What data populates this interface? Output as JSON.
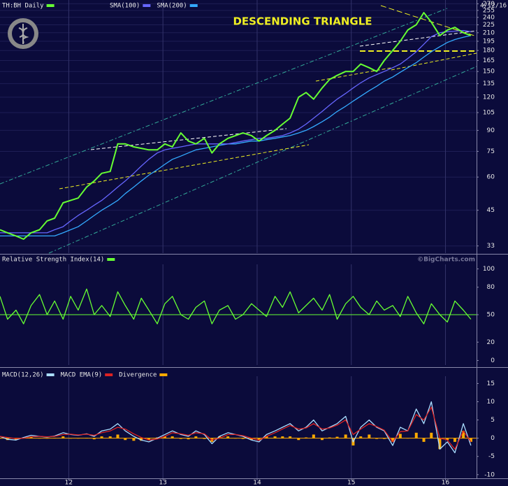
{
  "chart_data": [
    {
      "type": "line",
      "log_scale": true,
      "grid": true,
      "annotation": "DESCENDING TRIANGLE",
      "annotation_color": "#eeee22",
      "date_label": "4/12/16",
      "xlim": [
        2011.27,
        2016.33
      ],
      "ylim": [
        31,
        279
      ],
      "yticks": [
        270,
        255,
        240,
        225,
        210,
        195,
        180,
        165,
        150,
        135,
        120,
        105,
        90,
        75,
        60,
        45,
        33
      ],
      "x": [
        2011.27,
        2011.35,
        2011.44,
        2011.52,
        2011.6,
        2011.69,
        2011.77,
        2011.85,
        2011.94,
        2012.02,
        2012.1,
        2012.19,
        2012.27,
        2012.35,
        2012.44,
        2012.52,
        2012.6,
        2012.69,
        2012.77,
        2012.85,
        2012.94,
        2013.02,
        2013.1,
        2013.19,
        2013.27,
        2013.35,
        2013.44,
        2013.52,
        2013.6,
        2013.69,
        2013.77,
        2013.85,
        2013.94,
        2014.02,
        2014.1,
        2014.19,
        2014.27,
        2014.35,
        2014.44,
        2014.52,
        2014.6,
        2014.69,
        2014.77,
        2014.85,
        2014.94,
        2015.02,
        2015.1,
        2015.19,
        2015.27,
        2015.35,
        2015.44,
        2015.52,
        2015.6,
        2015.69,
        2015.77,
        2015.85,
        2015.94,
        2016.02,
        2016.1,
        2016.19,
        2016.27
      ],
      "series": [
        {
          "name": "TH:BH Daily",
          "color": "#66ff33",
          "values": [
            38,
            37,
            36,
            35,
            37,
            38,
            41,
            42,
            48,
            49,
            50,
            55,
            58,
            62,
            63,
            80,
            80,
            78,
            77,
            76,
            76,
            80,
            78,
            88,
            82,
            80,
            84,
            74,
            80,
            84,
            86,
            88,
            86,
            82,
            86,
            90,
            95,
            100,
            120,
            125,
            118,
            130,
            140,
            145,
            150,
            150,
            160,
            155,
            150,
            165,
            180,
            195,
            215,
            225,
            250,
            230,
            205,
            215,
            220,
            210,
            205
          ]
        },
        {
          "name": "SMA(100)",
          "color": "#6666ff",
          "values": [
            37,
            37,
            37,
            37,
            37,
            37,
            37,
            38,
            39,
            41,
            43,
            45,
            47,
            49,
            52,
            55,
            58,
            62,
            66,
            70,
            74,
            76,
            77,
            78,
            79,
            80,
            80,
            80,
            80,
            80,
            81,
            82,
            83,
            84,
            84,
            85,
            86,
            88,
            91,
            95,
            100,
            106,
            112,
            118,
            124,
            130,
            136,
            142,
            146,
            150,
            155,
            160,
            168,
            178,
            190,
            203,
            210,
            212,
            213,
            214,
            212
          ]
        },
        {
          "name": "SMA(200)",
          "color": "#33aaff",
          "values": [
            36,
            36,
            36,
            36,
            36,
            36,
            36,
            36,
            37,
            38,
            39,
            41,
            43,
            45,
            47,
            49,
            52,
            55,
            58,
            61,
            64,
            67,
            70,
            72,
            74,
            76,
            77,
            78,
            79,
            80,
            80,
            81,
            82,
            82,
            83,
            84,
            85,
            86,
            88,
            90,
            93,
            97,
            101,
            106,
            111,
            116,
            121,
            127,
            132,
            138,
            143,
            149,
            155,
            162,
            170,
            178,
            186,
            193,
            198,
            202,
            205
          ]
        }
      ]
    },
    {
      "type": "line",
      "source": "©BigCharts.com",
      "reference_line": 50,
      "xlim": [
        2011.27,
        2016.33
      ],
      "ylim": [
        -5,
        105
      ],
      "yticks": [
        100,
        80,
        50,
        20,
        0
      ],
      "x": [
        2011.27,
        2011.35,
        2011.44,
        2011.52,
        2011.6,
        2011.69,
        2011.77,
        2011.85,
        2011.94,
        2012.02,
        2012.1,
        2012.19,
        2012.27,
        2012.35,
        2012.44,
        2012.52,
        2012.6,
        2012.69,
        2012.77,
        2012.85,
        2012.94,
        2013.02,
        2013.1,
        2013.19,
        2013.27,
        2013.35,
        2013.44,
        2013.52,
        2013.6,
        2013.69,
        2013.77,
        2013.85,
        2013.94,
        2014.02,
        2014.1,
        2014.19,
        2014.27,
        2014.35,
        2014.44,
        2014.52,
        2014.6,
        2014.69,
        2014.77,
        2014.85,
        2014.94,
        2015.02,
        2015.1,
        2015.19,
        2015.27,
        2015.35,
        2015.44,
        2015.52,
        2015.6,
        2015.69,
        2015.77,
        2015.85,
        2015.94,
        2016.02,
        2016.1,
        2016.19,
        2016.27
      ],
      "series": [
        {
          "name": "Relative Strength Index(14)",
          "color": "#66ff33",
          "values": [
            70,
            45,
            55,
            40,
            60,
            72,
            50,
            65,
            45,
            70,
            55,
            78,
            50,
            60,
            48,
            75,
            60,
            45,
            68,
            55,
            40,
            62,
            70,
            50,
            45,
            58,
            65,
            40,
            55,
            60,
            45,
            50,
            62,
            55,
            48,
            70,
            58,
            75,
            52,
            60,
            68,
            55,
            72,
            45,
            62,
            70,
            58,
            50,
            65,
            55,
            60,
            48,
            70,
            52,
            40,
            62,
            50,
            42,
            65,
            55,
            45
          ]
        }
      ]
    },
    {
      "type": "line",
      "reference_line": 0,
      "xlim": [
        2011.27,
        2016.33
      ],
      "ylim": [
        -11,
        17
      ],
      "yticks": [
        15,
        10,
        5,
        0,
        -5,
        -10
      ],
      "xticks": [
        {
          "value": 2012,
          "label": "12"
        },
        {
          "value": 2013,
          "label": "13"
        },
        {
          "value": 2014,
          "label": "14"
        },
        {
          "value": 2015,
          "label": "15"
        },
        {
          "value": 2016,
          "label": "16"
        }
      ],
      "x": [
        2011.27,
        2011.35,
        2011.44,
        2011.52,
        2011.6,
        2011.69,
        2011.77,
        2011.85,
        2011.94,
        2012.02,
        2012.1,
        2012.19,
        2012.27,
        2012.35,
        2012.44,
        2012.52,
        2012.6,
        2012.69,
        2012.77,
        2012.85,
        2012.94,
        2013.02,
        2013.1,
        2013.19,
        2013.27,
        2013.35,
        2013.44,
        2013.52,
        2013.6,
        2013.69,
        2013.77,
        2013.85,
        2013.94,
        2014.02,
        2014.1,
        2014.19,
        2014.27,
        2014.35,
        2014.44,
        2014.52,
        2014.6,
        2014.69,
        2014.77,
        2014.85,
        2014.94,
        2015.02,
        2015.1,
        2015.19,
        2015.27,
        2015.35,
        2015.44,
        2015.52,
        2015.6,
        2015.69,
        2015.77,
        2015.85,
        2015.94,
        2016.02,
        2016.1,
        2016.19,
        2016.27
      ],
      "series": [
        {
          "name": "MACD(12,26)",
          "color": "#aaddff",
          "values": [
            0.5,
            -0.3,
            -0.5,
            0.2,
            0.8,
            0.5,
            0.3,
            0.6,
            1.5,
            1,
            0.8,
            1.2,
            0.5,
            2,
            2.5,
            4,
            2,
            0.5,
            -0.5,
            -1,
            0,
            1,
            2,
            1,
            0.5,
            2,
            1,
            -1.5,
            0.5,
            1.5,
            1,
            0.5,
            -0.5,
            -1,
            1,
            2,
            3,
            4,
            2,
            3,
            5,
            2,
            3,
            4,
            6,
            -1,
            3,
            5,
            3,
            2,
            -2,
            3,
            2,
            8,
            4,
            10,
            -3,
            -1,
            -4,
            4,
            -2
          ]
        },
        {
          "name": "MACD EMA(9)",
          "color": "#dd2222",
          "values": [
            0.5,
            0.2,
            -0.1,
            0,
            0.4,
            0.5,
            0.4,
            0.5,
            1,
            1.1,
            0.9,
            1.1,
            0.8,
            1.5,
            2,
            3,
            2.5,
            1.2,
            0.2,
            -0.5,
            -0.2,
            0.5,
            1.5,
            1.2,
            0.8,
            1.5,
            1.2,
            -0.5,
            0,
            1,
            1,
            0.7,
            0,
            -0.6,
            0.5,
            1.5,
            2.5,
            3.5,
            2.5,
            2.8,
            4,
            2.5,
            2.8,
            3.6,
            5,
            1,
            2.5,
            4,
            3.2,
            2.2,
            -1,
            1.8,
            2,
            6.5,
            5,
            8.5,
            0,
            -0.5,
            -3,
            2,
            -1
          ]
        },
        {
          "name": "Divergence",
          "color": "#ffaa00",
          "type": "bar",
          "values": [
            0,
            -0.5,
            -0.4,
            0.2,
            0.4,
            0,
            -0.1,
            0.1,
            0.5,
            -0.1,
            -0.1,
            0.1,
            -0.3,
            0.5,
            0.5,
            1,
            -0.5,
            -0.7,
            -0.7,
            -0.5,
            0.2,
            0.5,
            0.5,
            -0.2,
            -0.3,
            0.5,
            -0.2,
            -1,
            0.5,
            0.5,
            0,
            -0.2,
            -0.5,
            -0.4,
            0.5,
            0.5,
            0.5,
            0.5,
            -0.5,
            0.2,
            1,
            -0.5,
            0.2,
            0.4,
            1,
            -2,
            0.5,
            1,
            -0.2,
            -0.2,
            -1,
            1.2,
            0,
            1.5,
            -1,
            1.5,
            -3,
            -0.5,
            -1,
            2,
            -1
          ]
        }
      ]
    }
  ]
}
